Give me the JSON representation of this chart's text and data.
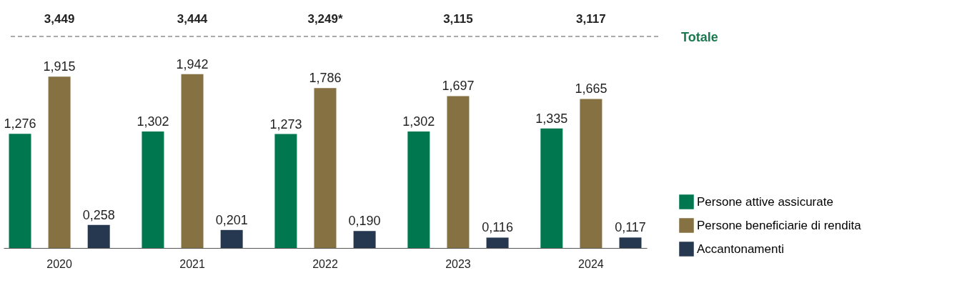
{
  "chart_data": {
    "type": "bar",
    "categories": [
      "2020",
      "2021",
      "2022",
      "2023",
      "2024"
    ],
    "series": [
      {
        "name": "Persone attive assicurate",
        "color": "#00774f",
        "values": [
          1.276,
          1.302,
          1.273,
          1.302,
          1.335
        ],
        "value_labels": [
          "1,276",
          "1,302",
          "1,273",
          "1,302",
          "1,335"
        ]
      },
      {
        "name": "Persone beneficiarie di rendita",
        "color": "#857142",
        "values": [
          1.915,
          1.942,
          1.786,
          1.697,
          1.665
        ],
        "value_labels": [
          "1,915",
          "1,942",
          "1,786",
          "1,697",
          "1,665"
        ]
      },
      {
        "name": "Accantonamenti",
        "color": "#263750",
        "values": [
          0.258,
          0.201,
          0.19,
          0.116,
          0.117
        ],
        "value_labels": [
          "0,258",
          "0,201",
          "0,190",
          "0,116",
          "0,117"
        ]
      }
    ],
    "annotations": [
      "3,449",
      "3,444",
      "3,249*",
      "3,115",
      "3,117",
      "Totale"
    ],
    "legend": "bottom right"
  }
}
